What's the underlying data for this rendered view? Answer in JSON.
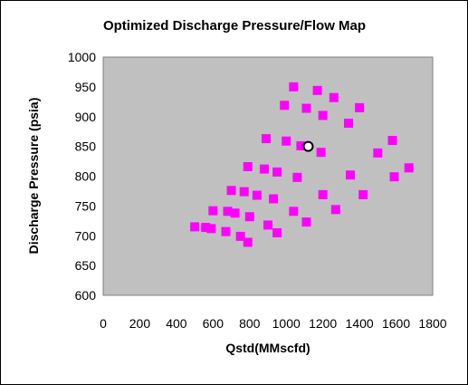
{
  "chart_data": {
    "type": "scatter",
    "title": "Optimized Discharge Pressure/Flow Map",
    "xlabel": "Qstd(MMscfd)",
    "ylabel": "Discharge Pressure (psia)",
    "xlim": [
      0,
      1800
    ],
    "ylim": [
      600,
      1000
    ],
    "xticks": [
      "0",
      "200",
      "400",
      "600",
      "800",
      "1000",
      "1200",
      "1400",
      "1600",
      "1800"
    ],
    "yticks": [
      "600",
      "650",
      "700",
      "750",
      "800",
      "850",
      "900",
      "950",
      "1000"
    ],
    "grid": false,
    "plot_background": "#c0c0c0",
    "series": [
      {
        "marker": "square",
        "color": "#ff00ff",
        "points": [
          [
            500,
            715
          ],
          [
            560,
            714
          ],
          [
            590,
            712
          ],
          [
            600,
            742
          ],
          [
            670,
            707
          ],
          [
            680,
            741
          ],
          [
            700,
            776
          ],
          [
            720,
            738
          ],
          [
            750,
            699
          ],
          [
            770,
            774
          ],
          [
            790,
            816
          ],
          [
            790,
            689
          ],
          [
            800,
            732
          ],
          [
            840,
            768
          ],
          [
            880,
            812
          ],
          [
            890,
            863
          ],
          [
            900,
            718
          ],
          [
            930,
            762
          ],
          [
            950,
            705
          ],
          [
            950,
            807
          ],
          [
            990,
            919
          ],
          [
            1000,
            859
          ],
          [
            1040,
            741
          ],
          [
            1040,
            950
          ],
          [
            1060,
            798
          ],
          [
            1080,
            851
          ],
          [
            1110,
            723
          ],
          [
            1110,
            914
          ],
          [
            1170,
            944
          ],
          [
            1190,
            840
          ],
          [
            1200,
            902
          ],
          [
            1200,
            769
          ],
          [
            1260,
            932
          ],
          [
            1270,
            744
          ],
          [
            1340,
            889
          ],
          [
            1350,
            802
          ],
          [
            1400,
            915
          ],
          [
            1420,
            769
          ],
          [
            1500,
            839
          ],
          [
            1580,
            860
          ],
          [
            1590,
            799
          ],
          [
            1670,
            814
          ]
        ]
      },
      {
        "marker": "circle",
        "color": "#ffffff",
        "edge_color": "#000000",
        "points": [
          [
            1120,
            850
          ]
        ]
      }
    ]
  }
}
